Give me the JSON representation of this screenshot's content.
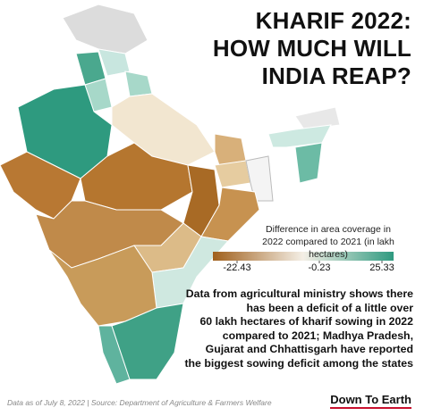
{
  "title": [
    "KHARIF 2022:",
    "HOW MUCH WILL",
    "INDIA REAP?"
  ],
  "legend": {
    "title": [
      "Difference in area coverage in",
      "2022 compared to 2021 (in lakh hectares)"
    ],
    "ticks": [
      -22.43,
      -0.23,
      25.33
    ]
  },
  "body": [
    "Data from agricultural ministry shows there",
    "has been a deficit of a little over",
    "60 lakh hectares of kharif sowing in 2022",
    "compared to 2021; Madhya Pradesh,",
    "Gujarat and Chhattisgarh have reported",
    "the biggest sowing deficit among the states"
  ],
  "footnote": "Data as of July 8, 2022 | Source: Department of Agriculture & Farmers Welfare",
  "logo": "Down To Earth"
}
